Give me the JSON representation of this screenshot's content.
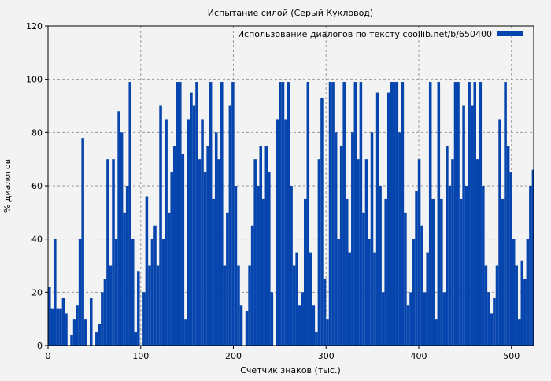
{
  "chart_data": {
    "type": "bar",
    "title": "Испытание силой (Серый Кукловод)",
    "xlabel": "Счетчик знаков (тыс.)",
    "ylabel": "% диалогов",
    "xlim": [
      0,
      524
    ],
    "ylim": [
      0,
      120
    ],
    "xticks": [
      0,
      100,
      200,
      300,
      400,
      500
    ],
    "yticks": [
      0,
      20,
      40,
      60,
      80,
      100,
      120
    ],
    "grid": true,
    "legend_position": "top-right",
    "bar_color": "#0645ad",
    "series": [
      {
        "name": "Использование диалогов по тексту coollib.net/b/650400",
        "x_step": 3,
        "x_start": 0,
        "values": [
          22,
          14,
          40,
          14,
          14,
          18,
          12,
          0,
          4,
          10,
          15,
          40,
          78,
          10,
          0,
          18,
          0,
          5,
          8,
          20,
          25,
          70,
          30,
          70,
          40,
          88,
          80,
          50,
          60,
          99,
          40,
          5,
          28,
          0,
          20,
          56,
          30,
          40,
          45,
          30,
          90,
          40,
          85,
          50,
          65,
          75,
          99,
          99,
          72,
          10,
          85,
          95,
          90,
          99,
          70,
          85,
          65,
          75,
          99,
          55,
          80,
          70,
          99,
          30,
          50,
          90,
          99,
          60,
          30,
          15,
          0,
          13,
          30,
          45,
          70,
          60,
          75,
          55,
          75,
          65,
          20,
          0,
          85,
          99,
          99,
          85,
          99,
          60,
          30,
          35,
          15,
          20,
          55,
          99,
          35,
          15,
          5,
          70,
          93,
          25,
          10,
          99,
          99,
          80,
          40,
          75,
          99,
          55,
          35,
          80,
          99,
          70,
          99,
          50,
          70,
          40,
          80,
          35,
          95,
          60,
          20,
          55,
          95,
          99,
          99,
          99,
          80,
          99,
          50,
          15,
          20,
          40,
          58,
          70,
          45,
          20,
          35,
          99,
          55,
          10,
          99,
          55,
          20,
          75,
          60,
          70,
          99,
          99,
          55,
          90,
          60,
          99,
          90,
          99,
          70,
          99,
          60,
          30,
          20,
          12,
          18,
          30,
          85,
          55,
          99,
          75,
          65,
          40,
          30,
          10,
          32,
          25,
          40,
          60,
          66
        ]
      }
    ]
  }
}
